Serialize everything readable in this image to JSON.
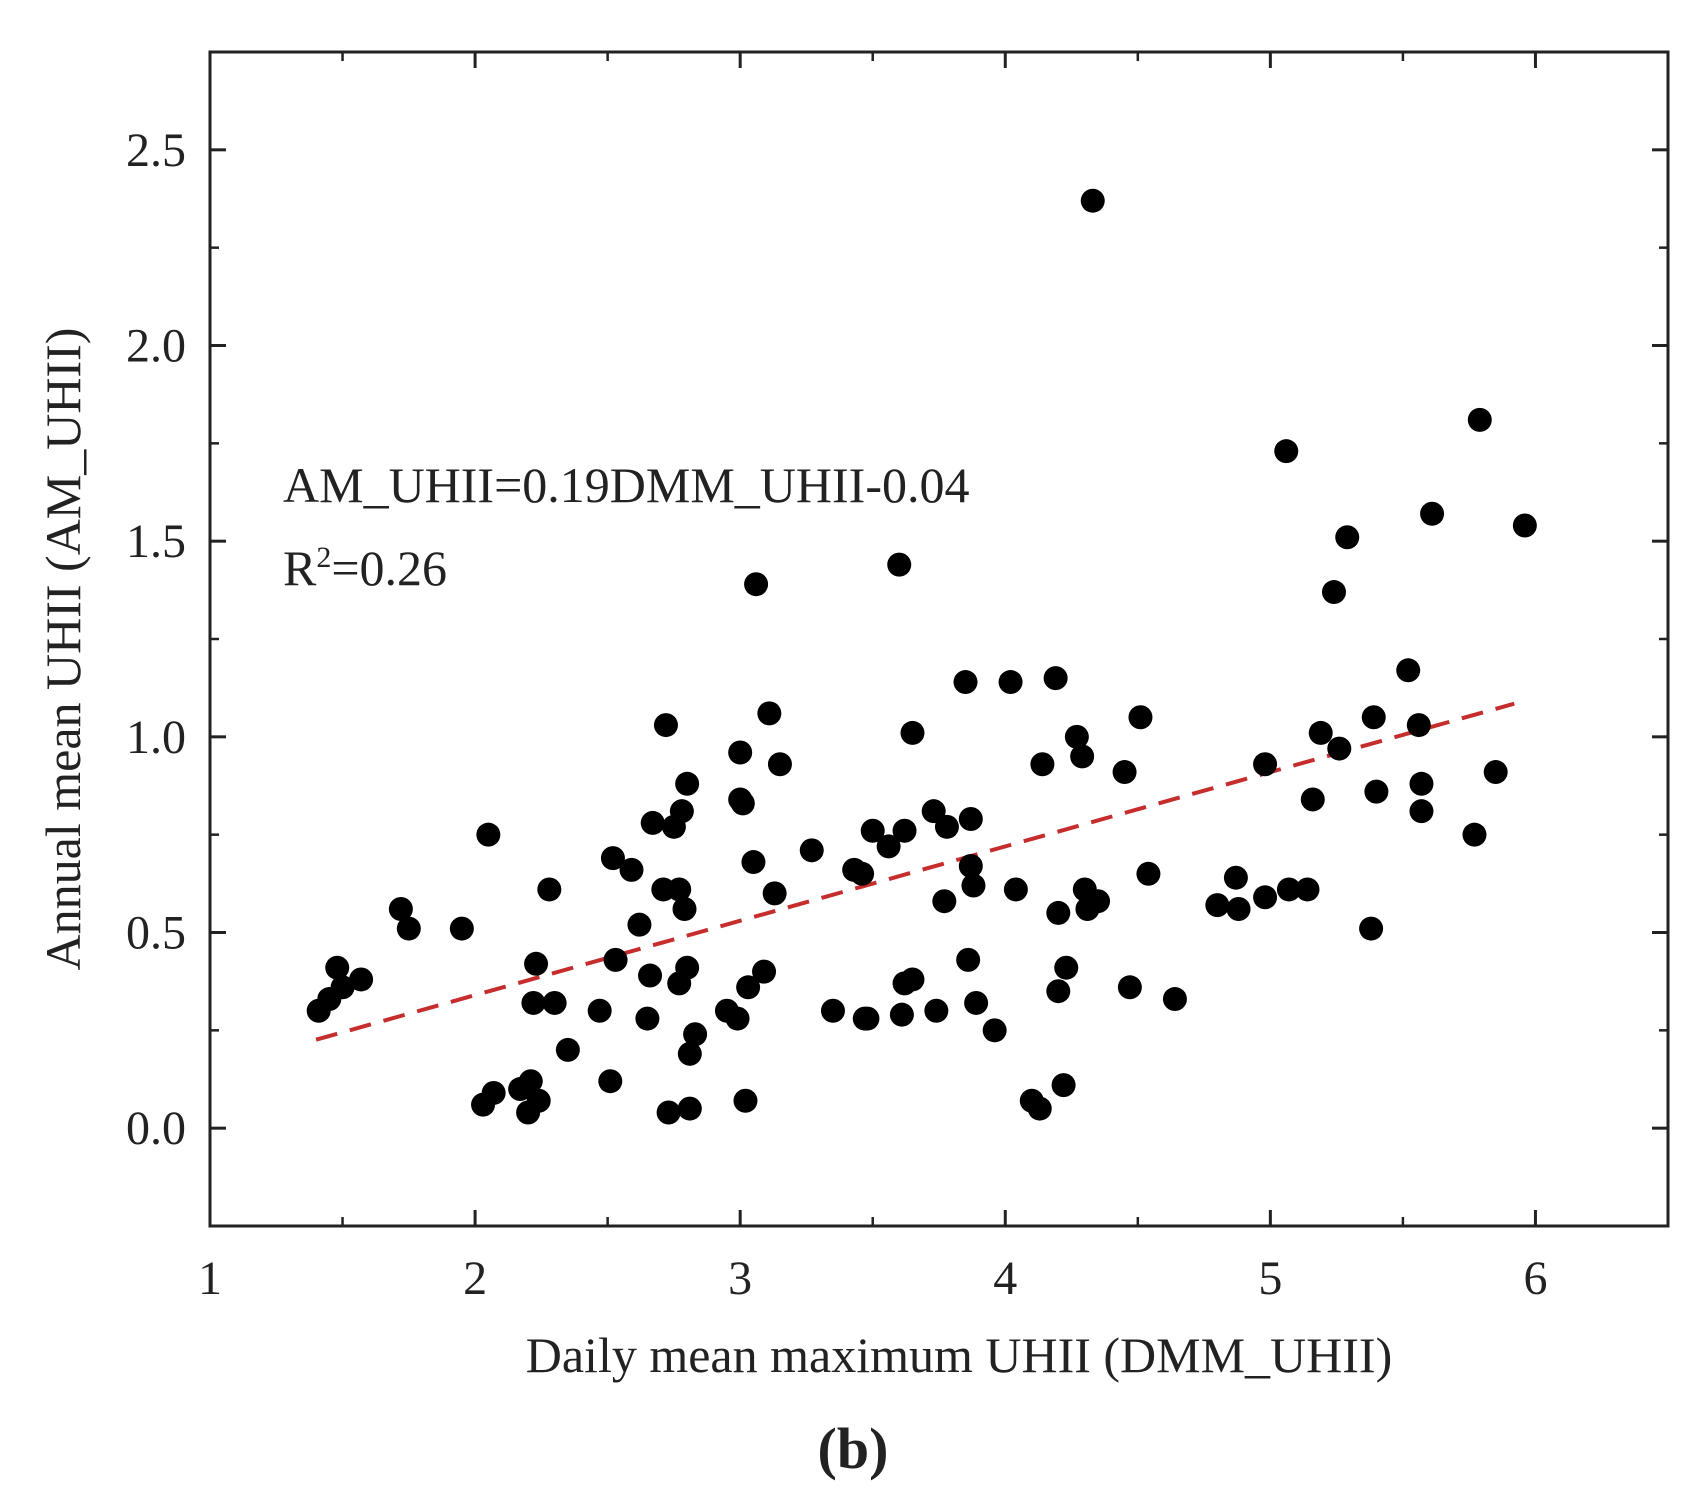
{
  "chart_data": {
    "type": "scatter",
    "title": "",
    "xlabel": "Daily mean maximum UHII (DMM_UHII)",
    "ylabel": "Annual mean UHII (AM_UHII)",
    "xlim": [
      1,
      6.5
    ],
    "ylim": [
      -0.25,
      2.75
    ],
    "x_ticks": [
      1,
      2,
      3,
      4,
      5,
      6
    ],
    "y_ticks": [
      0.0,
      0.5,
      1.0,
      1.5,
      2.0,
      2.5
    ],
    "x_tick_labels": [
      "1",
      "2",
      "3",
      "4",
      "5",
      "6"
    ],
    "y_tick_labels": [
      "0.0",
      "0.5",
      "1.0",
      "1.5",
      "2.0",
      "2.5"
    ],
    "grid": false,
    "legend": "none",
    "colors": {
      "points": "#000000",
      "fit_line": "#c62d2d",
      "axes": "#222222"
    },
    "annotation": {
      "equation": "AM_UHII=0.19DMM_UHII-0.04",
      "r2_prefix": "R",
      "r2_superscript": "2",
      "r2_value": "=0.26"
    },
    "panel_label": "(b)",
    "fit_line": {
      "style": "dashed",
      "slope": 0.19,
      "intercept": -0.04,
      "x_range": [
        1.4,
        5.92
      ]
    },
    "series": [
      {
        "points": [
          [
            1.41,
            0.3
          ],
          [
            1.45,
            0.33
          ],
          [
            1.48,
            0.41
          ],
          [
            1.5,
            0.36
          ],
          [
            1.57,
            0.38
          ],
          [
            1.72,
            0.56
          ],
          [
            1.75,
            0.51
          ],
          [
            1.95,
            0.51
          ],
          [
            2.03,
            0.06
          ],
          [
            2.05,
            0.75
          ],
          [
            2.07,
            0.09
          ],
          [
            2.17,
            0.1
          ],
          [
            2.2,
            0.04
          ],
          [
            2.21,
            0.12
          ],
          [
            2.22,
            0.32
          ],
          [
            2.23,
            0.42
          ],
          [
            2.24,
            0.07
          ],
          [
            2.28,
            0.61
          ],
          [
            2.3,
            0.32
          ],
          [
            2.35,
            0.2
          ],
          [
            2.47,
            0.3
          ],
          [
            2.51,
            0.12
          ],
          [
            2.52,
            0.69
          ],
          [
            2.53,
            0.43
          ],
          [
            2.59,
            0.66
          ],
          [
            2.62,
            0.52
          ],
          [
            2.65,
            0.28
          ],
          [
            2.66,
            0.39
          ],
          [
            2.67,
            0.78
          ],
          [
            2.71,
            0.61
          ],
          [
            2.72,
            1.03
          ],
          [
            2.73,
            0.04
          ],
          [
            2.75,
            0.77
          ],
          [
            2.77,
            0.61
          ],
          [
            2.77,
            0.37
          ],
          [
            2.78,
            0.81
          ],
          [
            2.79,
            0.56
          ],
          [
            2.8,
            0.88
          ],
          [
            2.8,
            0.41
          ],
          [
            2.81,
            0.19
          ],
          [
            2.81,
            0.05
          ],
          [
            2.83,
            0.24
          ],
          [
            2.95,
            0.3
          ],
          [
            2.99,
            0.28
          ],
          [
            3.0,
            0.96
          ],
          [
            3.0,
            0.84
          ],
          [
            3.01,
            0.83
          ],
          [
            3.02,
            0.07
          ],
          [
            3.03,
            0.36
          ],
          [
            3.05,
            0.68
          ],
          [
            3.06,
            1.39
          ],
          [
            3.09,
            0.4
          ],
          [
            3.11,
            1.06
          ],
          [
            3.13,
            0.6
          ],
          [
            3.15,
            0.93
          ],
          [
            3.27,
            0.71
          ],
          [
            3.35,
            0.3
          ],
          [
            3.43,
            0.66
          ],
          [
            3.46,
            0.65
          ],
          [
            3.47,
            0.28
          ],
          [
            3.48,
            0.28
          ],
          [
            3.5,
            0.76
          ],
          [
            3.56,
            0.72
          ],
          [
            3.6,
            1.44
          ],
          [
            3.61,
            0.29
          ],
          [
            3.62,
            0.37
          ],
          [
            3.62,
            0.76
          ],
          [
            3.65,
            1.01
          ],
          [
            3.65,
            0.38
          ],
          [
            3.73,
            0.81
          ],
          [
            3.74,
            0.3
          ],
          [
            3.77,
            0.58
          ],
          [
            3.78,
            0.77
          ],
          [
            3.85,
            1.14
          ],
          [
            3.86,
            0.43
          ],
          [
            3.87,
            0.79
          ],
          [
            3.87,
            0.67
          ],
          [
            3.88,
            0.62
          ],
          [
            3.89,
            0.32
          ],
          [
            3.96,
            0.25
          ],
          [
            4.02,
            1.14
          ],
          [
            4.04,
            0.61
          ],
          [
            4.1,
            0.07
          ],
          [
            4.13,
            0.05
          ],
          [
            4.14,
            0.93
          ],
          [
            4.19,
            1.15
          ],
          [
            4.2,
            0.55
          ],
          [
            4.2,
            0.35
          ],
          [
            4.22,
            0.11
          ],
          [
            4.23,
            0.41
          ],
          [
            4.27,
            1.0
          ],
          [
            4.29,
            0.95
          ],
          [
            4.3,
            0.61
          ],
          [
            4.31,
            0.56
          ],
          [
            4.33,
            2.37
          ],
          [
            4.35,
            0.58
          ],
          [
            4.45,
            0.91
          ],
          [
            4.47,
            0.36
          ],
          [
            4.51,
            1.05
          ],
          [
            4.54,
            0.65
          ],
          [
            4.64,
            0.33
          ],
          [
            4.8,
            0.57
          ],
          [
            4.87,
            0.64
          ],
          [
            4.88,
            0.56
          ],
          [
            4.98,
            0.93
          ],
          [
            4.98,
            0.59
          ],
          [
            5.06,
            1.73
          ],
          [
            5.07,
            0.61
          ],
          [
            5.14,
            0.61
          ],
          [
            5.16,
            0.84
          ],
          [
            5.19,
            1.01
          ],
          [
            5.24,
            1.37
          ],
          [
            5.26,
            0.97
          ],
          [
            5.29,
            1.51
          ],
          [
            5.38,
            0.51
          ],
          [
            5.39,
            1.05
          ],
          [
            5.4,
            0.86
          ],
          [
            5.52,
            1.17
          ],
          [
            5.56,
            1.03
          ],
          [
            5.57,
            0.81
          ],
          [
            5.57,
            0.88
          ],
          [
            5.61,
            1.57
          ],
          [
            5.77,
            0.75
          ],
          [
            5.79,
            1.81
          ],
          [
            5.85,
            0.91
          ],
          [
            5.96,
            1.54
          ]
        ]
      }
    ]
  }
}
